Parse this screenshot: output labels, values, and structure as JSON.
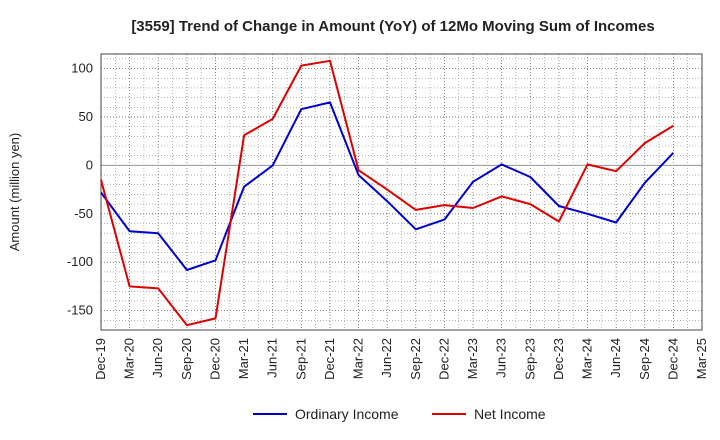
{
  "chart_data": {
    "type": "line",
    "title": "[3559]  Trend of Change in Amount (YoY) of 12Mo Moving Sum of Incomes",
    "xlabel": "",
    "ylabel": "Amount (million yen)",
    "ylim": [
      -170,
      115
    ],
    "yticks": [
      100,
      50,
      0,
      -50,
      -100,
      -150
    ],
    "categories": [
      "Dec-19",
      "Mar-20",
      "Jun-20",
      "Sep-20",
      "Dec-20",
      "Mar-21",
      "Jun-21",
      "Sep-21",
      "Dec-21",
      "Mar-22",
      "Jun-22",
      "Sep-22",
      "Dec-22",
      "Mar-23",
      "Jun-23",
      "Sep-23",
      "Dec-23",
      "Mar-24",
      "Jun-24",
      "Sep-24",
      "Dec-24",
      "Mar-25"
    ],
    "series": [
      {
        "name": "Ordinary Income",
        "color": "#0000cc",
        "values": [
          -28,
          -68,
          -70,
          -108,
          -98,
          -22,
          0,
          58,
          65,
          -10,
          -37,
          -66,
          -56,
          -17,
          1,
          -12,
          -42,
          -50,
          -59,
          -18,
          13,
          null
        ]
      },
      {
        "name": "Net Income",
        "color": "#dd0000",
        "values": [
          -15,
          -125,
          -127,
          -165,
          -158,
          31,
          48,
          103,
          108,
          -5,
          -25,
          -46,
          -41,
          -44,
          -32,
          -40,
          -58,
          1,
          -6,
          23,
          41,
          null
        ]
      }
    ],
    "grid": true,
    "legend": "bottom"
  }
}
